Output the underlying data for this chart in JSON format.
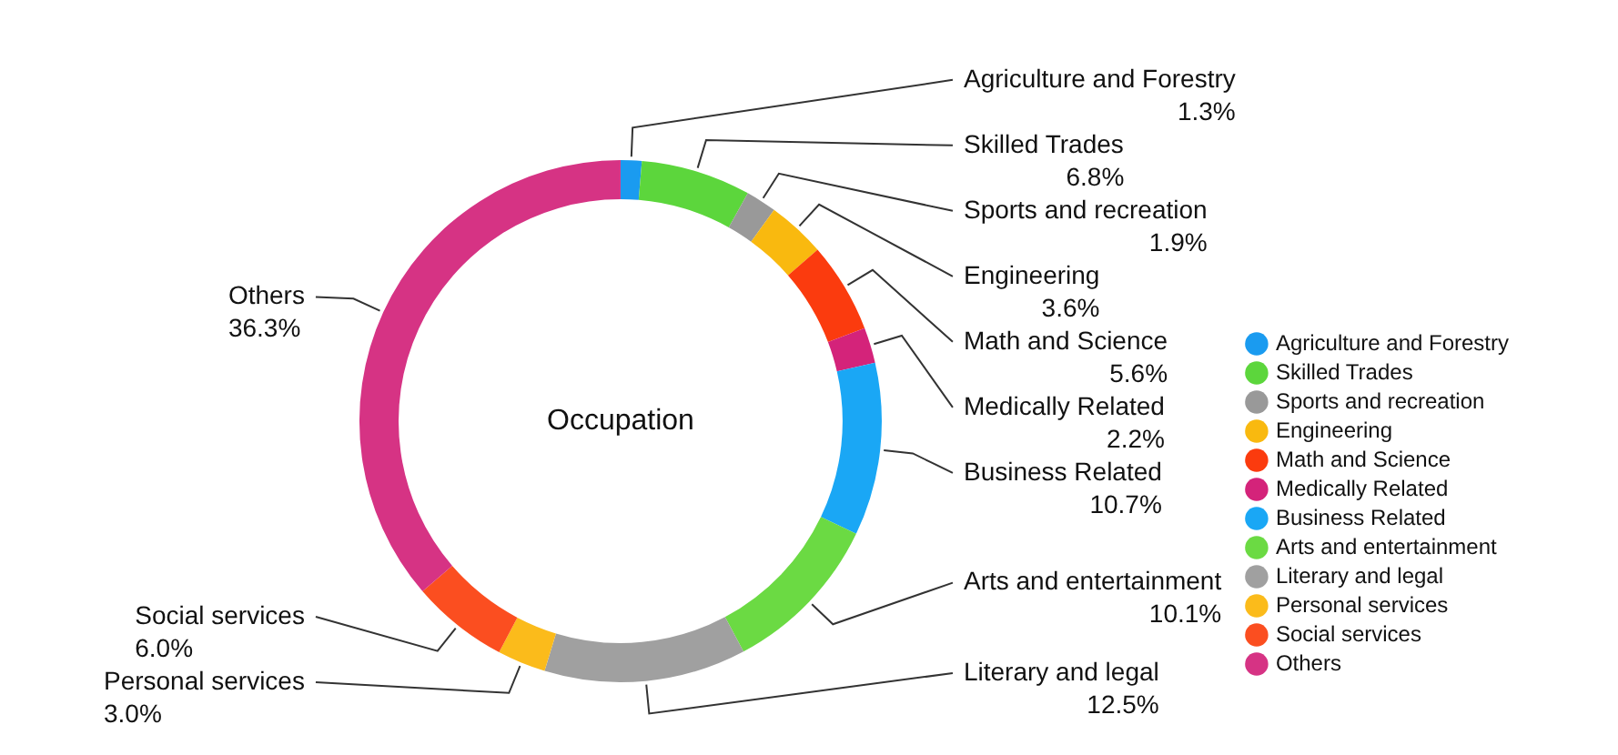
{
  "chart_data": {
    "type": "donut",
    "title": "Occupation",
    "categories": [
      "Agriculture and Forestry",
      "Skilled Trades",
      "Sports and recreation",
      "Engineering",
      "Math and Science",
      "Medically Related",
      "Business Related",
      "Arts and entertainment",
      "Literary and legal",
      "Personal services",
      "Social services",
      "Others"
    ],
    "values": [
      1.3,
      6.8,
      1.9,
      3.6,
      5.6,
      2.2,
      10.7,
      10.1,
      12.5,
      3.0,
      6.0,
      36.3
    ],
    "value_labels": [
      "1.3%",
      "6.8%",
      "1.9%",
      "3.6%",
      "5.6%",
      "2.2%",
      "10.7%",
      "10.1%",
      "12.5%",
      "3.0%",
      "6.0%",
      "36.3%"
    ],
    "colors": [
      "#1a9bf0",
      "#5cd63c",
      "#999999",
      "#f9b90f",
      "#fb3b0e",
      "#d4237a",
      "#1aa7f5",
      "#6bda43",
      "#a0a0a0",
      "#fbbb1b",
      "#fb4e20",
      "#d63384"
    ],
    "legend": "bottom right"
  }
}
